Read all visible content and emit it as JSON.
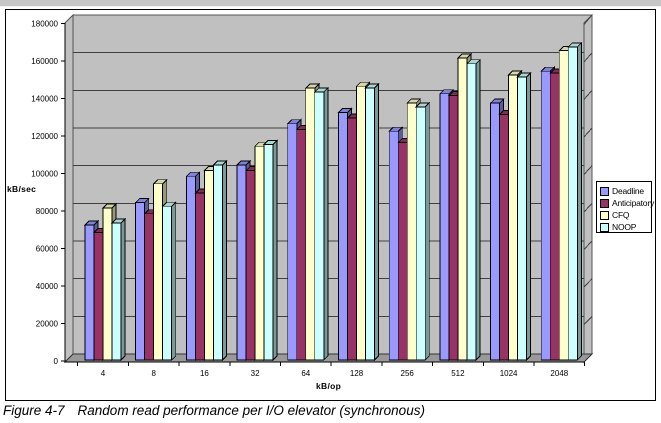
{
  "figure": {
    "caption_label": "Figure 4-7",
    "caption_text": "Random read performance per I/O elevator (synchronous)"
  },
  "chart_data": {
    "type": "bar",
    "style": "excel-3d-clustered-column",
    "title": "",
    "xlabel": "kB/op",
    "ylabel": "kB/sec",
    "categories": [
      "4",
      "8",
      "16",
      "32",
      "64",
      "128",
      "256",
      "512",
      "1024",
      "2048"
    ],
    "series": [
      {
        "name": "Deadline",
        "color": "#9999FF",
        "values": [
          72000,
          84000,
          98000,
          104000,
          126000,
          132000,
          122000,
          142000,
          137000,
          154000
        ]
      },
      {
        "name": "Anticipatory",
        "color": "#993366",
        "values": [
          68000,
          78000,
          89000,
          101000,
          123000,
          129000,
          116000,
          141000,
          131000,
          153000
        ]
      },
      {
        "name": "CFQ",
        "color": "#FFFFCC",
        "values": [
          81000,
          94000,
          101000,
          114000,
          145000,
          146000,
          137000,
          161000,
          152000,
          165000
        ]
      },
      {
        "name": "NOOP",
        "color": "#CCFFFF",
        "values": [
          73000,
          82000,
          104000,
          115000,
          143000,
          145000,
          135000,
          158000,
          151000,
          167000
        ]
      }
    ],
    "ylim": [
      0,
      180000
    ],
    "ytick_step": 20000,
    "y_tick_labels": [
      "0",
      "20000",
      "40000",
      "60000",
      "80000",
      "100000",
      "120000",
      "140000",
      "160000",
      "180000"
    ],
    "grid": true,
    "legend": {
      "position": "right",
      "entries": [
        "Deadline",
        "Anticipatory",
        "CFQ",
        "NOOP"
      ]
    },
    "colors": {
      "wall": "#C0C0C0",
      "floor": "#999999",
      "gridline": "#404040",
      "axis": "#000000"
    }
  }
}
